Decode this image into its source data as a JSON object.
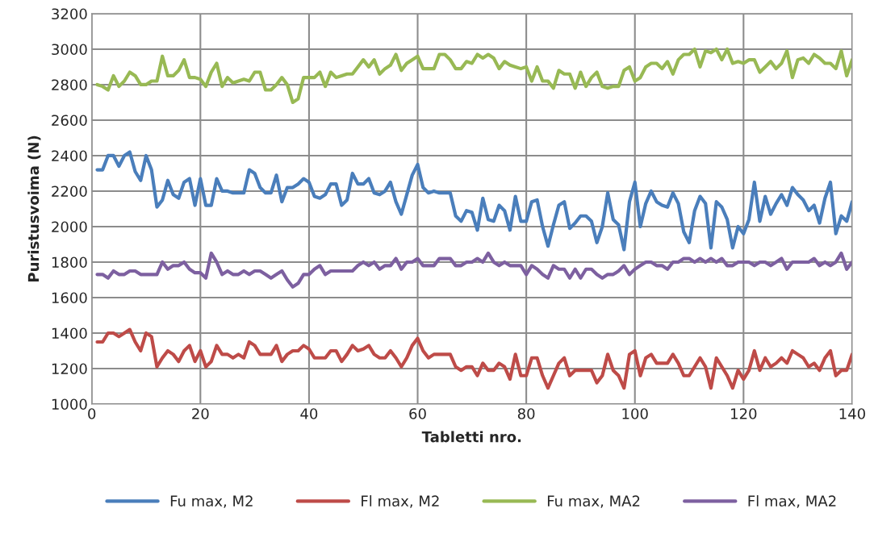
{
  "chart_data": {
    "type": "line",
    "xlabel": "Tabletti nro.",
    "ylabel": "Puristusvoima (N)",
    "x": [
      1,
      2,
      3,
      4,
      5,
      6,
      7,
      8,
      9,
      10,
      11,
      12,
      13,
      14,
      15,
      16,
      17,
      18,
      19,
      20,
      21,
      22,
      23,
      24,
      25,
      26,
      27,
      28,
      29,
      30,
      31,
      32,
      33,
      34,
      35,
      36,
      37,
      38,
      39,
      40,
      41,
      42,
      43,
      44,
      45,
      46,
      47,
      48,
      49,
      50,
      51,
      52,
      53,
      54,
      55,
      56,
      57,
      58,
      59,
      60,
      61,
      62,
      63,
      64,
      65,
      66,
      67,
      68,
      69,
      70,
      71,
      72,
      73,
      74,
      75,
      76,
      77,
      78,
      79,
      80,
      81,
      82,
      83,
      84,
      85,
      86,
      87,
      88,
      89,
      90,
      91,
      92,
      93,
      94,
      95,
      96,
      97,
      98,
      99,
      100,
      101,
      102,
      103,
      104,
      105,
      106,
      107,
      108,
      109,
      110,
      111,
      112,
      113,
      114,
      115,
      116,
      117,
      118,
      119,
      120,
      121,
      122,
      123,
      124,
      125,
      126,
      127,
      128,
      129,
      130,
      131,
      132,
      133,
      134,
      135,
      136,
      137,
      138,
      139,
      140
    ],
    "series": [
      {
        "name": "Fu max, M2",
        "color": "#4a7ebb",
        "values": [
          2320,
          2320,
          2400,
          2400,
          2340,
          2400,
          2420,
          2310,
          2260,
          2400,
          2320,
          2110,
          2150,
          2260,
          2180,
          2160,
          2250,
          2270,
          2120,
          2270,
          2120,
          2120,
          2270,
          2200,
          2200,
          2190,
          2190,
          2190,
          2320,
          2300,
          2220,
          2190,
          2190,
          2290,
          2140,
          2220,
          2220,
          2240,
          2270,
          2250,
          2170,
          2160,
          2180,
          2240,
          2240,
          2120,
          2150,
          2300,
          2240,
          2240,
          2270,
          2190,
          2180,
          2200,
          2250,
          2140,
          2070,
          2180,
          2290,
          2350,
          2220,
          2190,
          2200,
          2190,
          2190,
          2190,
          2060,
          2030,
          2090,
          2080,
          1980,
          2160,
          2040,
          2030,
          2120,
          2090,
          1980,
          2170,
          2030,
          2030,
          2140,
          2150,
          2000,
          1890,
          2010,
          2120,
          2140,
          1990,
          2020,
          2060,
          2060,
          2030,
          1910,
          2000,
          2190,
          2040,
          2010,
          1870,
          2140,
          2250,
          2000,
          2130,
          2200,
          2140,
          2120,
          2110,
          2190,
          2130,
          1970,
          1910,
          2090,
          2170,
          2130,
          1880,
          2140,
          2110,
          2040,
          1880,
          2000,
          1960,
          2040,
          2250,
          2030,
          2170,
          2070,
          2130,
          2180,
          2120,
          2220,
          2180,
          2150,
          2090,
          2120,
          2020,
          2160,
          2250,
          1960,
          2060,
          2030,
          2140
        ]
      },
      {
        "name": "Fl max, M2",
        "color": "#be4b48",
        "values": [
          1350,
          1350,
          1400,
          1400,
          1380,
          1400,
          1420,
          1350,
          1300,
          1400,
          1380,
          1210,
          1260,
          1300,
          1280,
          1240,
          1300,
          1330,
          1240,
          1300,
          1210,
          1240,
          1330,
          1280,
          1280,
          1260,
          1280,
          1260,
          1350,
          1330,
          1280,
          1280,
          1280,
          1330,
          1240,
          1280,
          1300,
          1300,
          1330,
          1310,
          1260,
          1260,
          1260,
          1300,
          1300,
          1240,
          1280,
          1330,
          1300,
          1310,
          1330,
          1280,
          1260,
          1260,
          1300,
          1260,
          1210,
          1260,
          1330,
          1370,
          1300,
          1260,
          1280,
          1280,
          1280,
          1280,
          1210,
          1190,
          1210,
          1210,
          1160,
          1230,
          1190,
          1190,
          1230,
          1210,
          1140,
          1280,
          1160,
          1160,
          1260,
          1260,
          1160,
          1090,
          1160,
          1230,
          1260,
          1160,
          1190,
          1190,
          1190,
          1190,
          1120,
          1160,
          1280,
          1190,
          1160,
          1090,
          1280,
          1300,
          1160,
          1260,
          1280,
          1230,
          1230,
          1230,
          1280,
          1230,
          1160,
          1160,
          1210,
          1260,
          1210,
          1090,
          1260,
          1210,
          1160,
          1090,
          1190,
          1140,
          1190,
          1300,
          1190,
          1260,
          1210,
          1230,
          1260,
          1230,
          1300,
          1280,
          1260,
          1210,
          1230,
          1190,
          1260,
          1300,
          1160,
          1190,
          1190,
          1280
        ]
      },
      {
        "name": "Fu max, MA2",
        "color": "#98b954",
        "values": [
          2800,
          2790,
          2770,
          2850,
          2790,
          2820,
          2870,
          2850,
          2800,
          2800,
          2820,
          2820,
          2960,
          2850,
          2850,
          2880,
          2940,
          2840,
          2840,
          2830,
          2790,
          2870,
          2920,
          2790,
          2840,
          2810,
          2820,
          2830,
          2820,
          2870,
          2870,
          2770,
          2770,
          2800,
          2840,
          2800,
          2700,
          2720,
          2840,
          2840,
          2840,
          2870,
          2790,
          2870,
          2840,
          2850,
          2860,
          2860,
          2900,
          2940,
          2900,
          2940,
          2860,
          2890,
          2910,
          2970,
          2880,
          2920,
          2940,
          2960,
          2890,
          2890,
          2890,
          2970,
          2970,
          2940,
          2890,
          2890,
          2930,
          2920,
          2970,
          2950,
          2970,
          2950,
          2890,
          2930,
          2910,
          2900,
          2890,
          2900,
          2820,
          2900,
          2820,
          2820,
          2780,
          2880,
          2860,
          2860,
          2780,
          2870,
          2790,
          2840,
          2870,
          2790,
          2780,
          2790,
          2790,
          2880,
          2900,
          2820,
          2840,
          2900,
          2920,
          2920,
          2890,
          2930,
          2860,
          2940,
          2970,
          2970,
          3000,
          2900,
          2990,
          2980,
          3000,
          2940,
          3000,
          2920,
          2930,
          2920,
          2940,
          2940,
          2870,
          2900,
          2930,
          2890,
          2920,
          2990,
          2840,
          2940,
          2950,
          2920,
          2970,
          2950,
          2920,
          2920,
          2890,
          2990,
          2850,
          2940
        ]
      },
      {
        "name": "Fl max, MA2",
        "color": "#7d60a0",
        "values": [
          1730,
          1730,
          1710,
          1750,
          1730,
          1730,
          1750,
          1750,
          1730,
          1730,
          1730,
          1730,
          1800,
          1760,
          1780,
          1780,
          1800,
          1760,
          1740,
          1740,
          1710,
          1850,
          1800,
          1730,
          1750,
          1730,
          1730,
          1750,
          1730,
          1750,
          1750,
          1730,
          1710,
          1730,
          1750,
          1700,
          1660,
          1680,
          1730,
          1730,
          1760,
          1780,
          1730,
          1750,
          1750,
          1750,
          1750,
          1750,
          1780,
          1800,
          1780,
          1800,
          1760,
          1780,
          1780,
          1820,
          1760,
          1800,
          1800,
          1820,
          1780,
          1780,
          1780,
          1820,
          1820,
          1820,
          1780,
          1780,
          1800,
          1800,
          1820,
          1800,
          1850,
          1800,
          1780,
          1800,
          1780,
          1780,
          1780,
          1730,
          1780,
          1760,
          1730,
          1710,
          1780,
          1760,
          1760,
          1710,
          1760,
          1710,
          1760,
          1760,
          1730,
          1710,
          1730,
          1730,
          1750,
          1780,
          1730,
          1760,
          1780,
          1800,
          1800,
          1780,
          1780,
          1760,
          1800,
          1800,
          1820,
          1820,
          1800,
          1820,
          1800,
          1820,
          1800,
          1820,
          1780,
          1780,
          1800,
          1800,
          1800,
          1780,
          1800,
          1800,
          1780,
          1800,
          1820,
          1760,
          1800,
          1800,
          1800,
          1800,
          1820,
          1780,
          1800,
          1780,
          1800,
          1850,
          1760,
          1800
        ]
      }
    ],
    "xlim": [
      0,
      140
    ],
    "xticks": [
      0,
      20,
      40,
      60,
      80,
      100,
      120,
      140
    ],
    "ylim": [
      1000,
      3200
    ],
    "yticks": [
      1000,
      1200,
      1400,
      1600,
      1800,
      2000,
      2200,
      2400,
      2600,
      2800,
      3000,
      3200
    ],
    "grid": true,
    "legend": "bottom",
    "line_style": "solid"
  }
}
